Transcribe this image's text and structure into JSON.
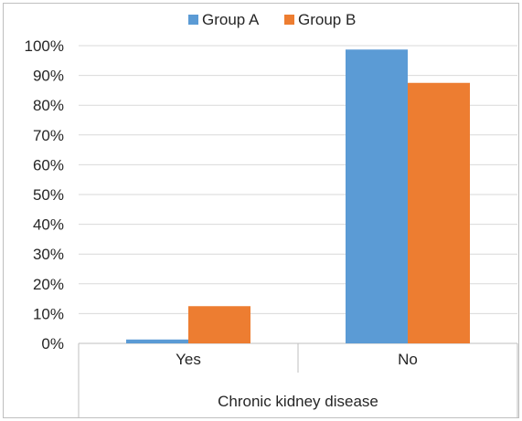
{
  "chart_data": {
    "type": "bar",
    "categories": [
      "Yes",
      "No"
    ],
    "xlabel": "Chronic kidney disease",
    "ylabel": "",
    "ylim": [
      0,
      100
    ],
    "ytick_step": 10,
    "yformat": "percent",
    "grid": true,
    "legend": "top-center",
    "series": [
      {
        "name": "Group A",
        "color": "#5b9bd5",
        "values": [
          1.3,
          98.7
        ]
      },
      {
        "name": "Group B",
        "color": "#ed7d31",
        "values": [
          12.5,
          87.5
        ]
      }
    ]
  }
}
